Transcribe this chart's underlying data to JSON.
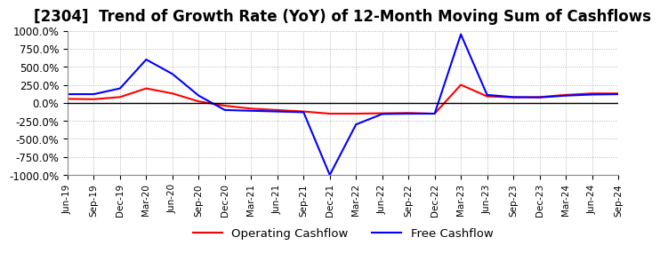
{
  "title": "[2304]  Trend of Growth Rate (YoY) of 12-Month Moving Sum of Cashflows",
  "title_fontsize": 12,
  "ylim": [
    -1000,
    1000
  ],
  "yticks": [
    1000,
    750,
    500,
    250,
    0,
    -250,
    -500,
    -750,
    -1000
  ],
  "ytick_labels": [
    "1000.0%",
    "750.0%",
    "500.0%",
    "250.0%",
    "0.0%",
    "-250.0%",
    "-500.0%",
    "-750.0%",
    "-1000.0%"
  ],
  "x_labels": [
    "Jun-19",
    "Sep-19",
    "Dec-19",
    "Mar-20",
    "Jun-20",
    "Sep-20",
    "Dec-20",
    "Mar-21",
    "Jun-21",
    "Sep-21",
    "Dec-21",
    "Mar-22",
    "Jun-22",
    "Sep-22",
    "Dec-22",
    "Mar-23",
    "Jun-23",
    "Sep-23",
    "Dec-23",
    "Mar-24",
    "Jun-24",
    "Sep-24"
  ],
  "operating_cashflow": [
    55,
    50,
    80,
    200,
    130,
    20,
    -40,
    -80,
    -100,
    -120,
    -150,
    -150,
    -145,
    -140,
    -150,
    250,
    90,
    75,
    80,
    110,
    130,
    130
  ],
  "free_cashflow": [
    120,
    120,
    200,
    600,
    400,
    100,
    -100,
    -110,
    -120,
    -130,
    -1000,
    -300,
    -155,
    -150,
    -150,
    950,
    110,
    80,
    75,
    100,
    115,
    120
  ],
  "operating_color": "#ff0000",
  "free_color": "#0000ff",
  "grid_color": "#b0b0b0",
  "background_color": "#ffffff",
  "legend_labels": [
    "Operating Cashflow",
    "Free Cashflow"
  ]
}
